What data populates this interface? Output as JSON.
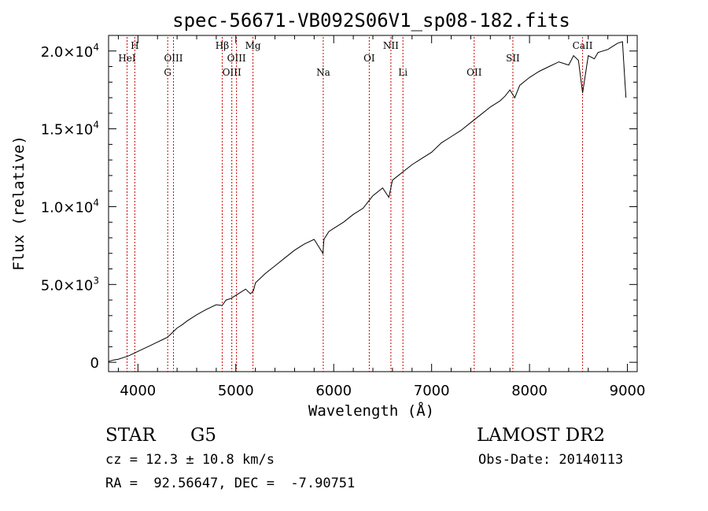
{
  "chart_data": {
    "type": "line",
    "title": "spec-56671-VB092S06V1_sp08-182.fits",
    "xlabel": "Wavelength (Å)",
    "ylabel": "Flux (relative)",
    "xlim": [
      3700,
      9100
    ],
    "ylim": [
      -600,
      21000
    ],
    "x_ticks": [
      4000,
      5000,
      6000,
      7000,
      8000,
      9000
    ],
    "x_tick_labels": [
      "4000",
      "5000",
      "6000",
      "7000",
      "8000",
      "9000"
    ],
    "y_ticks": [
      0,
      5000,
      10000,
      15000,
      20000
    ],
    "y_tick_labels": [
      {
        "mantissa": "0",
        "exponent": ""
      },
      {
        "mantissa": "5.0×10",
        "exponent": "3"
      },
      {
        "mantissa": "1.0×10",
        "exponent": "4"
      },
      {
        "mantissa": "1.5×10",
        "exponent": "4"
      },
      {
        "mantissa": "2.0×10",
        "exponent": "4"
      }
    ],
    "grid": false,
    "line_color": "#000000",
    "marker_color": "#cc0000",
    "series": [
      {
        "x": [
          3700,
          3750,
          3800,
          3850,
          3900,
          3950,
          4000,
          4050,
          4100,
          4150,
          4200,
          4250,
          4300,
          4350,
          4400,
          4450,
          4500,
          4600,
          4700,
          4800,
          4860,
          4900,
          4950,
          5000,
          5050,
          5100,
          5150,
          5180,
          5200,
          5300,
          5400,
          5500,
          5600,
          5700,
          5800,
          5890,
          5900,
          5950,
          6000,
          6100,
          6200,
          6300,
          6400,
          6500,
          6563,
          6600,
          6700,
          6800,
          6900,
          7000,
          7100,
          7200,
          7300,
          7400,
          7500,
          7600,
          7700,
          7750,
          7800,
          7850,
          7900,
          8000,
          8100,
          8200,
          8300,
          8400,
          8450,
          8500,
          8542,
          8600,
          8662,
          8700,
          8800,
          8850,
          8900,
          8950,
          8970,
          8985
        ],
        "y": [
          50,
          150,
          200,
          300,
          400,
          550,
          700,
          850,
          1000,
          1150,
          1300,
          1450,
          1600,
          1900,
          2200,
          2400,
          2650,
          3050,
          3400,
          3700,
          3650,
          4000,
          4100,
          4300,
          4500,
          4700,
          4400,
          4600,
          5100,
          5700,
          6200,
          6700,
          7200,
          7600,
          7900,
          7000,
          7900,
          8400,
          8600,
          9000,
          9500,
          9900,
          10700,
          11200,
          10600,
          11700,
          12200,
          12700,
          13100,
          13500,
          14100,
          14500,
          14900,
          15400,
          15900,
          16400,
          16800,
          17100,
          17500,
          17000,
          17800,
          18300,
          18700,
          19000,
          19300,
          19100,
          19700,
          19400,
          17300,
          19700,
          19500,
          19900,
          20100,
          20300,
          20500,
          20600,
          18500,
          17000
        ]
      }
    ],
    "spectral_lines": [
      {
        "label": "HeI",
        "wavelength": 3889,
        "row": 2
      },
      {
        "label": "H",
        "wavelength": 3968,
        "row": 1
      },
      {
        "label": "G",
        "wavelength": 4304,
        "row": 3
      },
      {
        "label": "OIII",
        "wavelength": 4363,
        "row": 2
      },
      {
        "label": "Hβ",
        "wavelength": 4861,
        "row": 1
      },
      {
        "label": "OIII",
        "wavelength": 4959,
        "row": 3
      },
      {
        "label": "OIII",
        "wavelength": 5007,
        "row": 2
      },
      {
        "label": "Mg",
        "wavelength": 5175,
        "row": 1
      },
      {
        "label": "Na",
        "wavelength": 5893,
        "row": 3
      },
      {
        "label": "OI",
        "wavelength": 6363,
        "row": 2
      },
      {
        "label": "NII",
        "wavelength": 6584,
        "row": 1
      },
      {
        "label": "Li",
        "wavelength": 6707,
        "row": 3
      },
      {
        "label": "OII",
        "wavelength": 7435,
        "row": 3
      },
      {
        "label": "SII",
        "wavelength": 7830,
        "row": 2
      },
      {
        "label": "CaII",
        "wavelength": 8542,
        "row": 1
      }
    ]
  },
  "info": {
    "class": "STAR",
    "subclass": "G5",
    "survey": "LAMOST DR2",
    "cz": "cz = 12.3 ± 10.8 km/s",
    "obs_date": "Obs-Date: 20140113",
    "coords": "RA =  92.56647, DEC =  -7.90751"
  }
}
